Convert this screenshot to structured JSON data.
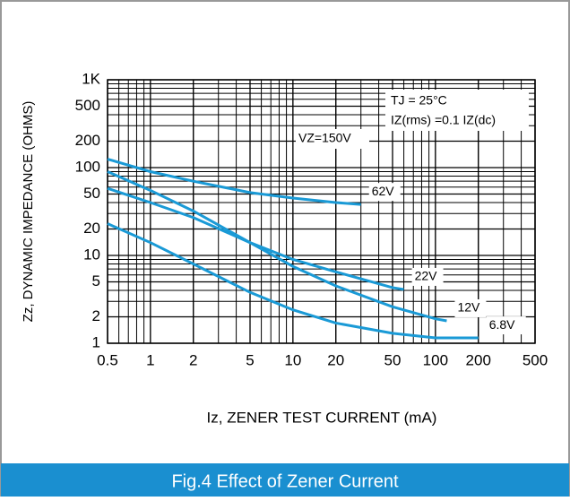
{
  "chart_data": {
    "type": "line",
    "title": "Fig.4 Effect of Zener Current",
    "x_label": "Iz, ZENER TEST CURRENT (mA)",
    "y_label": "Zz, DYNAMIC IMPEDANCE (OHMS)",
    "log_x": true,
    "log_y": true,
    "grid": true,
    "xlim": [
      0.5,
      500
    ],
    "xticks": [
      0.5,
      1,
      2,
      5,
      10,
      20,
      50,
      100,
      200,
      500
    ],
    "ylim": [
      1,
      1000
    ],
    "yticks": [
      1,
      2,
      5,
      10,
      20,
      50,
      100,
      200,
      500,
      {
        "value": 1000,
        "label": "1K"
      }
    ],
    "annotations": [
      "VZ=150V",
      "TJ = 25°C",
      "IZ(rms) =0.1 IZ(dc)"
    ],
    "series": [
      {
        "name": "62V",
        "color": "#1a9ad6",
        "x": [
          0.5,
          1,
          2,
          5,
          10,
          20,
          30
        ],
        "values": [
          125,
          90,
          70,
          52,
          45,
          40,
          38
        ]
      },
      {
        "name": "22V",
        "color": "#1a9ad6",
        "x": [
          0.5,
          1,
          2,
          5,
          10,
          20,
          50,
          60
        ],
        "values": [
          58,
          40,
          27,
          14,
          9,
          6.5,
          4.3,
          4.1
        ]
      },
      {
        "name": "12V",
        "color": "#1a9ad6",
        "x": [
          0.5,
          1,
          2,
          5,
          10,
          20,
          50,
          100,
          120
        ],
        "values": [
          90,
          55,
          32,
          14,
          7.5,
          4.5,
          2.6,
          1.9,
          1.8
        ]
      },
      {
        "name": "6.8V",
        "color": "#1a9ad6",
        "x": [
          0.5,
          1,
          2,
          5,
          10,
          20,
          50,
          100,
          200
        ],
        "values": [
          23,
          14,
          8,
          3.8,
          2.4,
          1.7,
          1.3,
          1.15,
          1.15
        ]
      }
    ]
  }
}
